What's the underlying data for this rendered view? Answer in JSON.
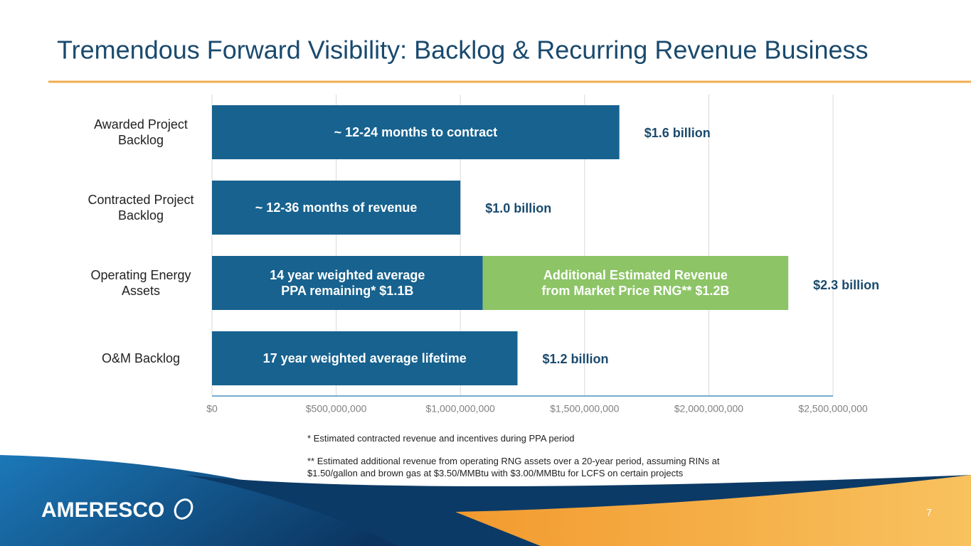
{
  "chart_data": {
    "type": "stacked-barh",
    "title": "Tremendous Forward Visibility: Backlog & Recurring Revenue Business",
    "categories": [
      "Awarded Project Backlog",
      "Contracted Project Backlog",
      "Operating Energy Assets",
      "O&M Backlog"
    ],
    "series": [
      {
        "color": "#17628f",
        "values": [
          1640000000,
          1000000000,
          1090000000,
          1230000000
        ],
        "bar_labels": [
          "~ 12-24 months to contract",
          "~ 12-36 months of revenue",
          "14 year weighted average PPA remaining* $1.1B",
          "17 year weighted average lifetime"
        ],
        "value_labels": [
          "$1.6 billion",
          "$1.0 billion",
          null,
          "$1.2 billion"
        ]
      },
      {
        "color": "#8cc466",
        "values": [
          null,
          null,
          1230000000,
          null
        ],
        "bar_labels": [
          null,
          null,
          "Additional Estimated Revenue from Market Price RNG** $1.2B",
          null
        ]
      }
    ],
    "total_labels": [
      null,
      null,
      "$2.3 billion",
      null
    ],
    "xlim": [
      0,
      2500000000
    ],
    "xticks": [
      {
        "value": 0,
        "label": "$0"
      },
      {
        "value": 500000000,
        "label": "$500,000,000"
      },
      {
        "value": 1000000000,
        "label": "$1,000,000,000"
      },
      {
        "value": 1500000000,
        "label": "$1,500,000,000"
      },
      {
        "value": 2000000000,
        "label": "$2,000,000,000"
      },
      {
        "value": 2500000000,
        "label": "$2,500,000,000"
      }
    ],
    "grid": true,
    "footnotes": [
      "* Estimated contracted revenue and incentives during PPA period",
      "** Estimated additional revenue from operating RNG assets over a 20-year period, assuming RINs at $1.50/gallon and brown gas at $3.50/MMBtu with $3.00/MMBtu for LCFS on certain projects"
    ]
  },
  "footer": {
    "logo": "AMERESCO",
    "page_number": 7
  }
}
